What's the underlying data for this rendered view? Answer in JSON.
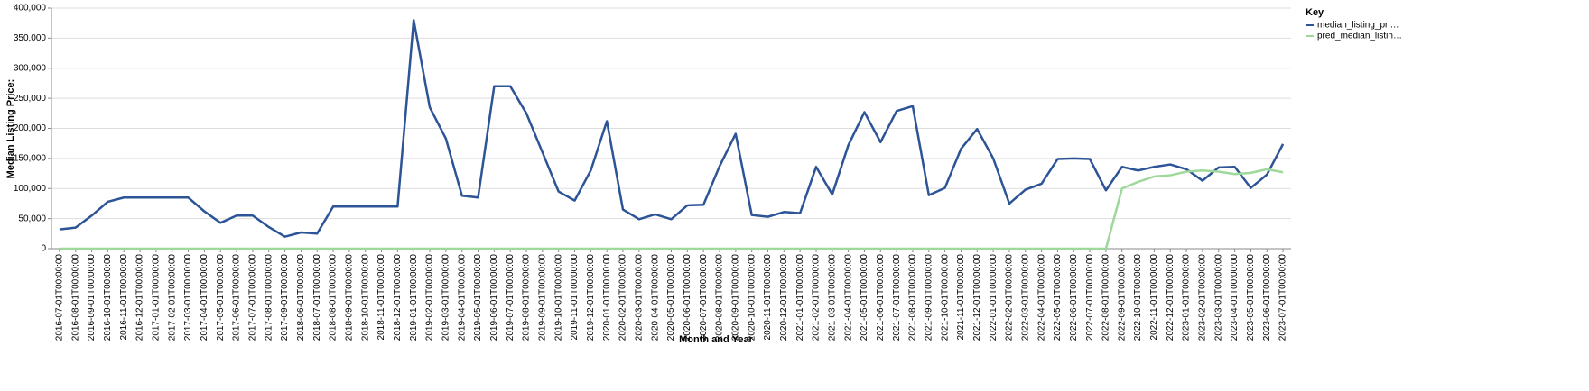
{
  "chart_data": {
    "type": "line",
    "x_label": "Month and Year",
    "y_label": "Median Listing Price:",
    "legend_title": "Key",
    "legend_position": "right",
    "grid": true,
    "categories": [
      "2016-07-01T00:00:00",
      "2016-08-01T00:00:00",
      "2016-09-01T00:00:00",
      "2016-10-01T00:00:00",
      "2016-11-01T00:00:00",
      "2016-12-01T00:00:00",
      "2017-01-01T00:00:00",
      "2017-02-01T00:00:00",
      "2017-03-01T00:00:00",
      "2017-04-01T00:00:00",
      "2017-05-01T00:00:00",
      "2017-06-01T00:00:00",
      "2017-07-01T00:00:00",
      "2017-08-01T00:00:00",
      "2017-09-01T00:00:00",
      "2018-06-01T00:00:00",
      "2018-07-01T00:00:00",
      "2018-08-01T00:00:00",
      "2018-09-01T00:00:00",
      "2018-10-01T00:00:00",
      "2018-11-01T00:00:00",
      "2018-12-01T00:00:00",
      "2019-01-01T00:00:00",
      "2019-02-01T00:00:00",
      "2019-03-01T00:00:00",
      "2019-04-01T00:00:00",
      "2019-05-01T00:00:00",
      "2019-06-01T00:00:00",
      "2019-07-01T00:00:00",
      "2019-08-01T00:00:00",
      "2019-09-01T00:00:00",
      "2019-10-01T00:00:00",
      "2019-11-01T00:00:00",
      "2019-12-01T00:00:00",
      "2020-01-01T00:00:00",
      "2020-02-01T00:00:00",
      "2020-03-01T00:00:00",
      "2020-04-01T00:00:00",
      "2020-05-01T00:00:00",
      "2020-06-01T00:00:00",
      "2020-07-01T00:00:00",
      "2020-08-01T00:00:00",
      "2020-09-01T00:00:00",
      "2020-10-01T00:00:00",
      "2020-11-01T00:00:00",
      "2020-12-01T00:00:00",
      "2021-01-01T00:00:00",
      "2021-02-01T00:00:00",
      "2021-03-01T00:00:00",
      "2021-04-01T00:00:00",
      "2021-05-01T00:00:00",
      "2021-06-01T00:00:00",
      "2021-07-01T00:00:00",
      "2021-08-01T00:00:00",
      "2021-09-01T00:00:00",
      "2021-10-01T00:00:00",
      "2021-11-01T00:00:00",
      "2021-12-01T00:00:00",
      "2022-01-01T00:00:00",
      "2022-02-01T00:00:00",
      "2022-03-01T00:00:00",
      "2022-04-01T00:00:00",
      "2022-05-01T00:00:00",
      "2022-06-01T00:00:00",
      "2022-07-01T00:00:00",
      "2022-08-01T00:00:00",
      "2022-09-01T00:00:00",
      "2022-10-01T00:00:00",
      "2022-11-01T00:00:00",
      "2022-12-01T00:00:00",
      "2023-01-01T00:00:00",
      "2023-02-01T00:00:00",
      "2023-03-01T00:00:00",
      "2023-04-01T00:00:00",
      "2023-05-01T00:00:00",
      "2023-06-01T00:00:00",
      "2023-07-01T00:00:00"
    ],
    "series": [
      {
        "name": "median_listing_pri…",
        "color": "#2c5497",
        "values": [
          32000,
          35000,
          55000,
          78000,
          85000,
          85000,
          85000,
          85000,
          85000,
          62000,
          43000,
          55000,
          55000,
          36000,
          20000,
          27000,
          25000,
          70000,
          70000,
          70000,
          70000,
          70000,
          380000,
          235000,
          183000,
          88000,
          85000,
          270000,
          270000,
          225000,
          160000,
          95000,
          80000,
          130000,
          212000,
          65000,
          49000,
          57000,
          49000,
          72000,
          73000,
          137000,
          191000,
          56000,
          53000,
          61000,
          59000,
          136000,
          90000,
          172000,
          227000,
          177000,
          229000,
          237000,
          89000,
          101000,
          166000,
          199000,
          150000,
          75000,
          98000,
          108000,
          149000,
          150000,
          149000,
          97000,
          136000,
          130000,
          136000,
          140000,
          132000,
          113000,
          135000,
          136000,
          101000,
          123000,
          174000
        ]
      },
      {
        "name": "pred_median_listin…",
        "color": "#9ed89a",
        "values": [
          0,
          0,
          0,
          0,
          0,
          0,
          0,
          0,
          0,
          0,
          0,
          0,
          0,
          0,
          0,
          0,
          0,
          0,
          0,
          0,
          0,
          0,
          0,
          0,
          0,
          0,
          0,
          0,
          0,
          0,
          0,
          0,
          0,
          0,
          0,
          0,
          0,
          0,
          0,
          0,
          0,
          0,
          0,
          0,
          0,
          0,
          0,
          0,
          0,
          0,
          0,
          0,
          0,
          0,
          0,
          0,
          0,
          0,
          0,
          0,
          0,
          0,
          0,
          0,
          0,
          0,
          100000,
          111000,
          120000,
          122000,
          128000,
          130000,
          128000,
          124000,
          126000,
          132000,
          127000
        ]
      }
    ],
    "ylim": [
      0,
      400000
    ],
    "yticks": [
      0,
      {
        "value": 50000,
        "label": "50,000"
      },
      {
        "value": 100000,
        "label": "100,000"
      },
      {
        "value": 150000,
        "label": "150,000"
      },
      {
        "value": 200000,
        "label": "200,000"
      },
      {
        "value": 250000,
        "label": "250,000"
      },
      {
        "value": 300000,
        "label": "300,000"
      },
      {
        "value": 350000,
        "label": "350,000"
      },
      {
        "value": 400000,
        "label": "400,000"
      }
    ]
  }
}
